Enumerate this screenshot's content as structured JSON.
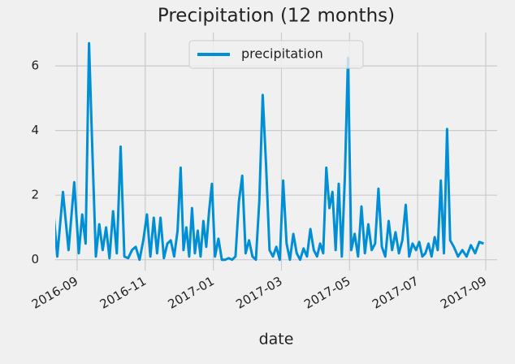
{
  "chart_data": {
    "type": "line",
    "title": "Precipitation (12 months)",
    "x_label": "date",
    "x": [
      "2016-08",
      "2016-08",
      "2016-08",
      "2016-08",
      "2016-08",
      "2016-08",
      "2016-09",
      "2016-09",
      "2016-09",
      "2016-09",
      "2016-09",
      "2016-09",
      "2016-09",
      "2016-09",
      "2016-09",
      "2016-09",
      "2016-10",
      "2016-10",
      "2016-10",
      "2016-10",
      "2016-10",
      "2016-10",
      "2016-10",
      "2016-10",
      "2016-10",
      "2016-11",
      "2016-11",
      "2016-11",
      "2016-11",
      "2016-11",
      "2016-11",
      "2016-11",
      "2016-11",
      "2016-11",
      "2016-11",
      "2016-12",
      "2016-12",
      "2016-12",
      "2016-12",
      "2016-12",
      "2016-12",
      "2016-12",
      "2016-12",
      "2016-12",
      "2016-12",
      "2016-12",
      "2016-12",
      "2017-01",
      "2017-01",
      "2017-01",
      "2017-01",
      "2017-01",
      "2017-01",
      "2017-01",
      "2017-01",
      "2017-01",
      "2017-01",
      "2017-02",
      "2017-02",
      "2017-02",
      "2017-02",
      "2017-02",
      "2017-02",
      "2017-02",
      "2017-02",
      "2017-02",
      "2017-02",
      "2017-03",
      "2017-03",
      "2017-03",
      "2017-03",
      "2017-03",
      "2017-03",
      "2017-03",
      "2017-03",
      "2017-03",
      "2017-03",
      "2017-04",
      "2017-04",
      "2017-04",
      "2017-04",
      "2017-04",
      "2017-04",
      "2017-04",
      "2017-04",
      "2017-04",
      "2017-04",
      "2017-04",
      "2017-05",
      "2017-05",
      "2017-05",
      "2017-05",
      "2017-05",
      "2017-05",
      "2017-05",
      "2017-05",
      "2017-05",
      "2017-05",
      "2017-06",
      "2017-06",
      "2017-06",
      "2017-06",
      "2017-06",
      "2017-06",
      "2017-06",
      "2017-06",
      "2017-06",
      "2017-06",
      "2017-07",
      "2017-07",
      "2017-07",
      "2017-07",
      "2017-07",
      "2017-07",
      "2017-07",
      "2017-07",
      "2017-07",
      "2017-07",
      "2017-07",
      "2017-08",
      "2017-08",
      "2017-08",
      "2017-08",
      "2017-08",
      "2017-08",
      "2017-08",
      "2017-08"
    ],
    "series": [
      {
        "name": "precipitation",
        "color": "#008fd5",
        "values": [
          1.8,
          2.2,
          0.1,
          2.1,
          0.3,
          2.4,
          0.2,
          1.4,
          0.5,
          6.7,
          3.3,
          0.1,
          1.1,
          0.3,
          1.0,
          0.05,
          1.5,
          0.2,
          3.5,
          0.1,
          0.05,
          0.3,
          0.4,
          0.0,
          0.6,
          1.4,
          0.1,
          1.3,
          0.2,
          1.3,
          0.05,
          0.5,
          0.6,
          0.1,
          0.9,
          2.85,
          0.3,
          1.0,
          0.1,
          1.6,
          0.2,
          0.9,
          0.1,
          1.2,
          0.4,
          1.5,
          2.35,
          0.1,
          0.65,
          0.0,
          0.0,
          0.05,
          0.0,
          0.1,
          1.8,
          2.6,
          0.2,
          0.6,
          0.1,
          0.0,
          1.8,
          5.1,
          2.9,
          0.3,
          0.1,
          0.4,
          0.0,
          2.45,
          0.5,
          0.0,
          0.8,
          0.2,
          0.0,
          0.35,
          0.1,
          0.95,
          0.3,
          0.1,
          0.5,
          0.2,
          2.85,
          1.6,
          2.1,
          0.3,
          2.35,
          0.1,
          2.6,
          6.25,
          0.3,
          0.8,
          0.1,
          1.65,
          0.2,
          1.1,
          0.3,
          0.5,
          2.2,
          0.4,
          0.1,
          1.2,
          0.3,
          0.85,
          0.2,
          0.6,
          1.7,
          0.1,
          0.5,
          0.3,
          0.55,
          0.1,
          0.2,
          0.5,
          0.1,
          0.7,
          0.3,
          2.45,
          0.2,
          4.05,
          0.6,
          0.4,
          0.1,
          0.3,
          0.1,
          0.45,
          0.2,
          0.55,
          0.5
        ]
      }
    ],
    "xlim": [
      "2016-08",
      "2017-09"
    ],
    "xticks": [
      "2016-09",
      "2016-11",
      "2017-01",
      "2017-03",
      "2017-05",
      "2017-07",
      "2017-09"
    ],
    "ylim": [
      -0.335,
      7.035
    ],
    "yticks": [
      0,
      2,
      4,
      6
    ],
    "grid": true,
    "legend": "upper center"
  }
}
